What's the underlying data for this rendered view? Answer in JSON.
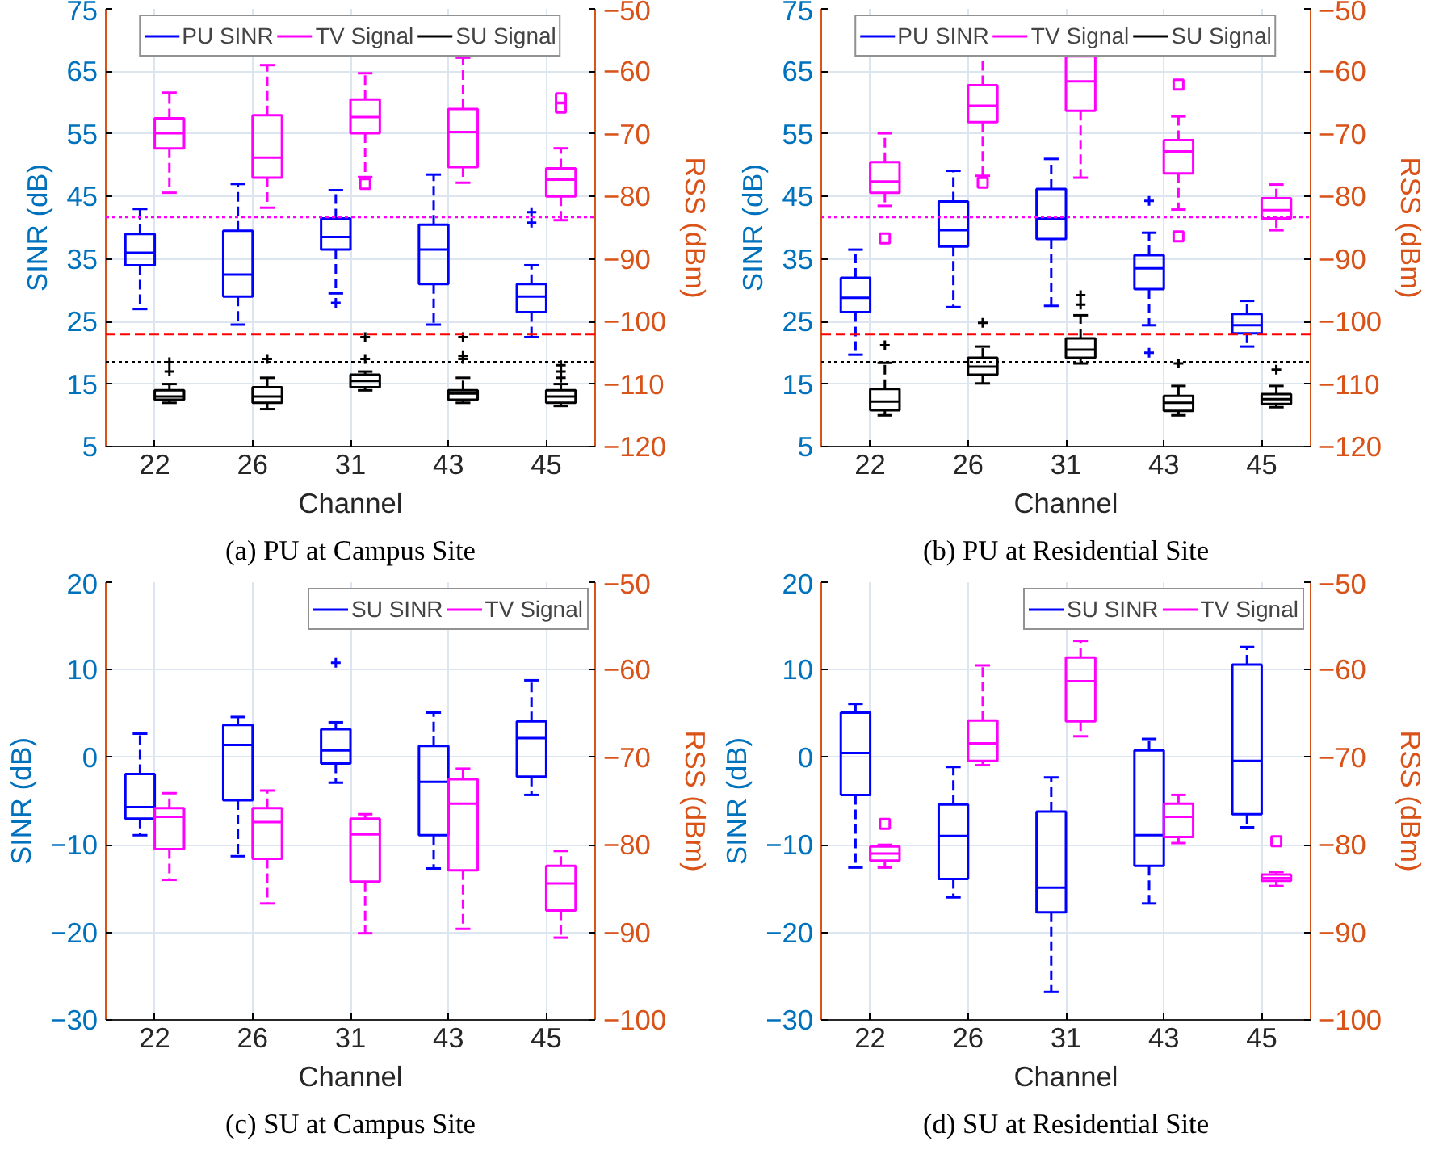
{
  "chart_data": [
    {
      "type": "box",
      "title": "(a) PU at Campus Site",
      "xlabel": "Channel",
      "ylabel": "SINR (dB)",
      "y2label": "RSS (dBm)",
      "categories": [
        "22",
        "26",
        "31",
        "43",
        "45"
      ],
      "ylim": [
        5,
        75
      ],
      "yticks": [
        5,
        15,
        25,
        35,
        45,
        55,
        65,
        75
      ],
      "y2lim": [
        -120,
        -50
      ],
      "y2ticks": [
        -120,
        -110,
        -100,
        -90,
        -80,
        -70,
        -60,
        -50
      ],
      "grid": true,
      "legend": "top",
      "ref_lines": [
        {
          "axis": "y",
          "value": 41.7,
          "color": "#ff00ff",
          "line_style": "dotted"
        },
        {
          "axis": "y",
          "value": 23,
          "color": "#ff0000",
          "line_style": "dashed"
        },
        {
          "axis": "y",
          "value": 18.5,
          "color": "#000000",
          "line_style": "dotted"
        }
      ],
      "series": [
        {
          "name": "PU SINR",
          "color": "#0000ff",
          "axis": "y",
          "marker": "cross",
          "boxes": [
            {
              "low": 27,
              "q1": 34,
              "median": 36,
              "q3": 39,
              "high": 43
            },
            {
              "low": 24.5,
              "q1": 29,
              "median": 32.5,
              "q3": 39.5,
              "high": 47
            },
            {
              "low": 29.5,
              "q1": 36.5,
              "median": 38.5,
              "q3": 41.5,
              "high": 46,
              "outliers": [
                28
              ]
            },
            {
              "low": 24.5,
              "q1": 31,
              "median": 36.5,
              "q3": 40.5,
              "high": 48.5
            },
            {
              "low": 22.5,
              "q1": 26.5,
              "median": 29,
              "q3": 31,
              "high": 34,
              "outliers": [
                40.8,
                42.5
              ]
            }
          ]
        },
        {
          "name": "TV Signal",
          "color": "#ff00ff",
          "axis": "y2",
          "marker": "square",
          "boxes": [
            {
              "low": -79.4,
              "q1": -72.3,
              "median": -69.9,
              "q3": -67.5,
              "high": -63.4
            },
            {
              "low": -81.8,
              "q1": -77,
              "median": -73.8,
              "q3": -67,
              "high": -59
            },
            {
              "low": -76.9,
              "q1": -69.9,
              "median": -67.3,
              "q3": -64.5,
              "high": -60.3,
              "outliers": [
                -78
              ]
            },
            {
              "low": -77.8,
              "q1": -75.3,
              "median": -69.7,
              "q3": -66,
              "high": -57.8
            },
            {
              "low": -83.8,
              "q1": -80,
              "median": -77.3,
              "q3": -75.5,
              "high": -72.3,
              "outliers": [
                -64.3,
                -65.8
              ]
            }
          ]
        },
        {
          "name": "SU Signal",
          "color": "#000000",
          "axis": "y2",
          "marker": "cross",
          "boxes": [
            {
              "low": -113,
              "q1": -112.5,
              "median": -112,
              "q3": -111,
              "high": -110,
              "outliers": [
                -108,
                -106.5
              ]
            },
            {
              "low": -114,
              "q1": -113,
              "median": -112,
              "q3": -110.5,
              "high": -109,
              "outliers": [
                -106
              ]
            },
            {
              "low": -111,
              "q1": -110.5,
              "median": -109.5,
              "q3": -108.5,
              "high": -108,
              "outliers": [
                -106,
                -102.5
              ]
            },
            {
              "low": -113,
              "q1": -112.5,
              "median": -111.5,
              "q3": -111,
              "high": -109,
              "outliers": [
                -106,
                -105.5,
                -102.5
              ]
            },
            {
              "low": -113.5,
              "q1": -113,
              "median": -112,
              "q3": -111,
              "high": -110,
              "outliers": [
                -109,
                -108,
                -107
              ]
            }
          ]
        }
      ]
    },
    {
      "type": "box",
      "title": "(b) PU at Residential Site",
      "xlabel": "Channel",
      "ylabel": "SINR (dB)",
      "y2label": "RSS (dBm)",
      "categories": [
        "22",
        "26",
        "31",
        "43",
        "45"
      ],
      "ylim": [
        5,
        75
      ],
      "yticks": [
        5,
        15,
        25,
        35,
        45,
        55,
        65,
        75
      ],
      "y2lim": [
        -120,
        -50
      ],
      "y2ticks": [
        -120,
        -110,
        -100,
        -90,
        -80,
        -70,
        -60,
        -50
      ],
      "grid": true,
      "legend": "top",
      "ref_lines": [
        {
          "axis": "y",
          "value": 41.7,
          "color": "#ff00ff",
          "line_style": "dotted"
        },
        {
          "axis": "y",
          "value": 23,
          "color": "#ff0000",
          "line_style": "dashed"
        },
        {
          "axis": "y",
          "value": 18.5,
          "color": "#000000",
          "line_style": "dotted"
        }
      ],
      "series": [
        {
          "name": "PU SINR",
          "color": "#0000ff",
          "axis": "y",
          "marker": "cross",
          "boxes": [
            {
              "low": 19.7,
              "q1": 26.5,
              "median": 28.8,
              "q3": 32,
              "high": 36.5
            },
            {
              "low": 27.3,
              "q1": 37,
              "median": 39.6,
              "q3": 44.2,
              "high": 49.1
            },
            {
              "low": 27.5,
              "q1": 38.2,
              "median": 41.5,
              "q3": 46.2,
              "high": 51
            },
            {
              "low": 24.4,
              "q1": 30.2,
              "median": 33.5,
              "q3": 35.6,
              "high": 39.2,
              "outliers": [
                44.3,
                20
              ]
            },
            {
              "low": 21,
              "q1": 23.1,
              "median": 24.4,
              "q3": 26.2,
              "high": 28.3
            }
          ]
        },
        {
          "name": "TV Signal",
          "color": "#ff00ff",
          "axis": "y2",
          "marker": "square",
          "boxes": [
            {
              "low": -81.5,
              "q1": -79.4,
              "median": -77.6,
              "q3": -74.5,
              "high": -69.9,
              "outliers": [
                -86.7
              ]
            },
            {
              "low": -76.7,
              "q1": -68.1,
              "median": -65.5,
              "q3": -62.2,
              "high": -57.4,
              "outliers": [
                -77.8
              ]
            },
            {
              "low": -77,
              "q1": -66.3,
              "median": -61.6,
              "q3": -57.6,
              "high": -54.1
            },
            {
              "low": -82.1,
              "q1": -76.3,
              "median": -72.8,
              "q3": -71,
              "high": -67.2,
              "outliers": [
                -62.1,
                -86.4
              ]
            },
            {
              "low": -85.4,
              "q1": -83.5,
              "median": -82.2,
              "q3": -80.3,
              "high": -78.1
            }
          ]
        },
        {
          "name": "SU Signal",
          "color": "#000000",
          "axis": "y2",
          "marker": "cross",
          "boxes": [
            {
              "low": -115,
              "q1": -114.2,
              "median": -112.8,
              "q3": -110.8,
              "high": -106.6,
              "outliers": [
                -103.8
              ]
            },
            {
              "low": -109.9,
              "q1": -108.5,
              "median": -107.2,
              "q3": -105.8,
              "high": -104,
              "outliers": [
                -100.2
              ]
            },
            {
              "low": -106.7,
              "q1": -105.8,
              "median": -104.5,
              "q3": -102.7,
              "high": -99,
              "outliers": [
                -95.8,
                -97.3
              ]
            },
            {
              "low": -115,
              "q1": -114.3,
              "median": -113,
              "q3": -111.9,
              "high": -110.3,
              "outliers": [
                -106.7
              ]
            },
            {
              "low": -113.7,
              "q1": -113.2,
              "median": -112.4,
              "q3": -111.6,
              "high": -110.3,
              "outliers": [
                -107.7
              ]
            }
          ]
        }
      ]
    },
    {
      "type": "box",
      "title": "(c) SU at Campus Site",
      "xlabel": "Channel",
      "ylabel": "SINR (dB)",
      "y2label": "RSS (dBm)",
      "categories": [
        "22",
        "26",
        "31",
        "43",
        "45"
      ],
      "ylim": [
        -30,
        20
      ],
      "yticks": [
        -30,
        -20,
        -10,
        0,
        10,
        20
      ],
      "y2lim": [
        -100,
        -50
      ],
      "y2ticks": [
        -100,
        -90,
        -80,
        -70,
        -60,
        -50
      ],
      "grid": true,
      "legend": "top right",
      "series": [
        {
          "name": "SU SINR",
          "color": "#0000ff",
          "axis": "y",
          "marker": "cross",
          "boxes": [
            {
              "low": -8.9,
              "q1": -7,
              "median": -5.7,
              "q3": -1.9,
              "high": 2.7
            },
            {
              "low": -11.3,
              "q1": -4.9,
              "median": 1.4,
              "q3": 3.7,
              "high": 4.6
            },
            {
              "low": -2.9,
              "q1": -0.7,
              "median": 0.8,
              "q3": 3.2,
              "high": 4,
              "outliers": [
                10.8
              ]
            },
            {
              "low": -12.7,
              "q1": -8.9,
              "median": -2.8,
              "q3": 1.3,
              "high": 5.1
            },
            {
              "low": -4.3,
              "q1": -2.2,
              "median": 2.2,
              "q3": 4.1,
              "high": 8.8
            }
          ]
        },
        {
          "name": "TV Signal",
          "color": "#ff00ff",
          "axis": "y2",
          "boxes": [
            {
              "low": -84,
              "q1": -80.5,
              "median": -76.8,
              "q3": -75.8,
              "high": -74.1
            },
            {
              "low": -86.7,
              "q1": -81.6,
              "median": -77.4,
              "q3": -75.8,
              "high": -73.8
            },
            {
              "low": -90.1,
              "q1": -84.2,
              "median": -78.8,
              "q3": -77,
              "high": -76.5
            },
            {
              "low": -89.6,
              "q1": -82.9,
              "median": -75.3,
              "q3": -72.5,
              "high": -71.3
            },
            {
              "low": -90.6,
              "q1": -87.5,
              "median": -84.4,
              "q3": -82.4,
              "high": -80.7
            }
          ]
        }
      ]
    },
    {
      "type": "box",
      "title": "(d) SU at Residential Site",
      "xlabel": "Channel",
      "ylabel": "SINR (dB)",
      "y2label": "RSS (dBm)",
      "categories": [
        "22",
        "26",
        "31",
        "43",
        "45"
      ],
      "ylim": [
        -30,
        20
      ],
      "yticks": [
        -30,
        -20,
        -10,
        0,
        10,
        20
      ],
      "y2lim": [
        -100,
        -50
      ],
      "y2ticks": [
        -100,
        -90,
        -80,
        -70,
        -60,
        -50
      ],
      "grid": true,
      "legend": "top right",
      "series": [
        {
          "name": "SU SINR",
          "color": "#0000ff",
          "axis": "y",
          "boxes": [
            {
              "low": -12.6,
              "q1": -4.3,
              "median": 0.5,
              "q3": 5.1,
              "high": 6.1
            },
            {
              "low": -16,
              "q1": -13.9,
              "median": -9,
              "q3": -5.4,
              "high": -1.1
            },
            {
              "low": -26.8,
              "q1": -17.7,
              "median": -14.9,
              "q3": -6.2,
              "high": -2.3
            },
            {
              "low": -16.7,
              "q1": -12.4,
              "median": -8.9,
              "q3": 0.8,
              "high": 2.1
            },
            {
              "low": -8,
              "q1": -6.5,
              "median": -0.4,
              "q3": 10.6,
              "high": 12.6
            }
          ]
        },
        {
          "name": "TV Signal",
          "color": "#ff00ff",
          "axis": "y2",
          "marker": "square",
          "boxes": [
            {
              "low": -82.6,
              "q1": -81.8,
              "median": -81,
              "q3": -80.2,
              "high": -80,
              "outliers": [
                -77.6
              ]
            },
            {
              "low": -70.9,
              "q1": -70.4,
              "median": -68.4,
              "q3": -65.8,
              "high": -59.5
            },
            {
              "low": -67.6,
              "q1": -65.9,
              "median": -61.3,
              "q3": -58.6,
              "high": -56.7
            },
            {
              "low": -79.8,
              "q1": -79.1,
              "median": -76.8,
              "q3": -75.3,
              "high": -74.3
            },
            {
              "low": -84.7,
              "q1": -84.1,
              "median": -83.8,
              "q3": -83.4,
              "high": -83.1,
              "outliers": [
                -79.6
              ]
            }
          ]
        }
      ]
    }
  ]
}
